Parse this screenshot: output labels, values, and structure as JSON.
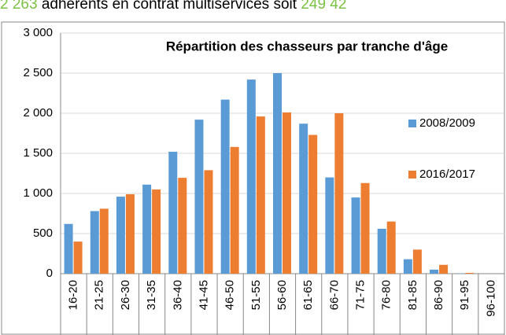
{
  "header": {
    "caption": [
      "2 263",
      " adhérents en contrat multiservices soit ",
      "249 42"
    ]
  },
  "chart_data": {
    "type": "bar",
    "title": "Répartition des chasseurs par tranche d'âge",
    "categories": [
      "16-20",
      "21-25",
      "26-30",
      "31-35",
      "36-40",
      "41-45",
      "46-50",
      "51-55",
      "56-60",
      "61-65",
      "66-70",
      "71-75",
      "76-80",
      "81-85",
      "86-90",
      "91-95",
      "96-100"
    ],
    "series": [
      {
        "name": "2008/2009",
        "color": "#5b9bd5",
        "values": [
          620,
          780,
          960,
          1110,
          1520,
          1920,
          2170,
          2420,
          2500,
          1870,
          1200,
          950,
          560,
          180,
          50,
          5,
          0
        ]
      },
      {
        "name": "2016/2017",
        "color": "#ed7d31",
        "values": [
          400,
          810,
          990,
          1050,
          1195,
          1290,
          1580,
          1960,
          2010,
          1730,
          2000,
          1130,
          650,
          300,
          110,
          10,
          0
        ]
      }
    ],
    "ylim": [
      0,
      3000
    ],
    "yticks": [
      0,
      500,
      {
        "value": 1000,
        "label": "1 000"
      },
      {
        "value": 1500,
        "label": "1 500"
      },
      {
        "value": 2000,
        "label": "2 000"
      },
      {
        "value": 2500,
        "label": "2 500"
      },
      {
        "value": 3000,
        "label": "3 000"
      }
    ],
    "grid": true,
    "legend": "right"
  }
}
